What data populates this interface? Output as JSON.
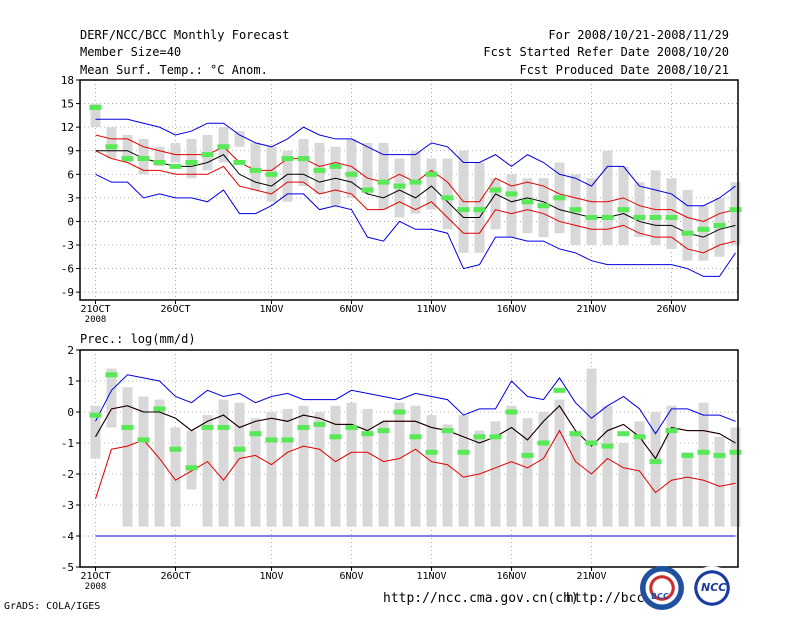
{
  "header": {
    "title": "DERF/NCC/BCC Monthly Forecast",
    "member_size": "Member Size=40",
    "variable": "Mean Surf. Temp.: °C Anom.",
    "period": "For 2008/10/21-2008/11/29",
    "started": "Fcst Started Refer Date 2008/10/20",
    "produced": "Fcst Produced Date 2008/10/21"
  },
  "footer": {
    "grads": "GrADS: COLA/IGES",
    "url1": "http://ncc.cma.gov.cn(ch)",
    "url2": "http://bcc.",
    "logo_left": "BCC",
    "logo_right": "NCC"
  },
  "colors": {
    "box": "#d8d8d8",
    "mean": "#58e858",
    "median": "#000000",
    "inner": "#e00000",
    "outer": "#0000e0",
    "grid": "#999999"
  },
  "chart_data": [
    {
      "type": "ensemble-boxplot",
      "title": "Mean Surf. Temp.: °C Anom.",
      "ylim": [
        -10,
        18
      ],
      "yticks": [
        -9,
        -6,
        -3,
        0,
        3,
        6,
        9,
        12,
        15,
        18
      ],
      "xticks": [
        {
          "day": 0,
          "label": "21OCT",
          "sub": "2008"
        },
        {
          "day": 5,
          "label": "26OCT"
        },
        {
          "day": 11,
          "label": "1NOV"
        },
        {
          "day": 16,
          "label": "6NOV"
        },
        {
          "day": 21,
          "label": "11NOV"
        },
        {
          "day": 26,
          "label": "16NOV"
        },
        {
          "day": 31,
          "label": "21NOV"
        },
        {
          "day": 36,
          "label": "26NOV"
        }
      ],
      "box_low": [
        12,
        8,
        7.5,
        6,
        7,
        7.5,
        5.5,
        6.5,
        7.5,
        9.5,
        4,
        2.5,
        2.5,
        4.5,
        3.5,
        2,
        3,
        3.5,
        1.5,
        0.5,
        1,
        1.5,
        -1,
        -4,
        -4,
        -1,
        -2,
        -1.5,
        -2,
        -1.5,
        -3,
        -3,
        -3,
        -3,
        -2,
        -3,
        -3.5,
        -5,
        -5,
        -4.5,
        -3
      ],
      "box_high": [
        15,
        12,
        11,
        10.5,
        9.5,
        10,
        10.5,
        11,
        12,
        11.5,
        10,
        9.5,
        9,
        10.5,
        10,
        9.5,
        10.5,
        10,
        10,
        8,
        9,
        8,
        8,
        9,
        7.5,
        5.5,
        6,
        5.5,
        5.5,
        7.5,
        6,
        5.5,
        9,
        7,
        5,
        6.5,
        5.5,
        4,
        2,
        3,
        5
      ],
      "mean": [
        14.5,
        9.5,
        8,
        8,
        7.5,
        7,
        7.5,
        8.5,
        9.5,
        7.5,
        6.5,
        6,
        8,
        8,
        6.5,
        7,
        6,
        4,
        5,
        4.5,
        5,
        6,
        3,
        1.5,
        1.5,
        4,
        3.5,
        2.5,
        2,
        3,
        1.5,
        0.5,
        0.5,
        1.5,
        0.5,
        0.5,
        0.5,
        -1.5,
        -1,
        -0.5,
        1.5
      ],
      "median": [
        9,
        9,
        9,
        8,
        7.5,
        7,
        7,
        7.5,
        8.5,
        6,
        5,
        4.5,
        6,
        6,
        5,
        5.5,
        5,
        3.5,
        3,
        4,
        3,
        4.5,
        2.5,
        0.5,
        0.5,
        3.5,
        2.5,
        3,
        2.5,
        1.5,
        1,
        0.5,
        0.5,
        1,
        0,
        -0.5,
        -0.5,
        -1.5,
        -2,
        -1,
        -0.5
      ],
      "inner_high": [
        11,
        10.5,
        10.5,
        9.5,
        9,
        8.5,
        8.5,
        8.5,
        9.5,
        7.5,
        6.5,
        6.5,
        8,
        8,
        7,
        7.5,
        7,
        5.5,
        5,
        6,
        5,
        6.5,
        5,
        2.5,
        2.5,
        5.5,
        4.5,
        5,
        4.5,
        3.5,
        3,
        2.5,
        2.5,
        3,
        2,
        1.5,
        1.5,
        0.5,
        0,
        1,
        1.5
      ],
      "inner_low": [
        9,
        8,
        7.5,
        6.5,
        6.5,
        6,
        6,
        6,
        7,
        4.5,
        4,
        3.5,
        5,
        5,
        3.5,
        4,
        3.5,
        1.5,
        1.5,
        2.5,
        1.5,
        2.5,
        0.5,
        -1.5,
        -1.5,
        1.5,
        1,
        1.5,
        1,
        0,
        -0.5,
        -1,
        -1,
        -0.5,
        -1.5,
        -2,
        -2,
        -3.5,
        -4,
        -3,
        -2.5
      ],
      "outer_high": [
        13,
        13,
        13,
        12.5,
        12,
        11,
        11.5,
        12.5,
        12.5,
        11,
        10,
        9.5,
        10.5,
        12,
        11,
        10.5,
        10.5,
        9.5,
        8.5,
        8.5,
        8.5,
        10,
        9.5,
        7.5,
        7.5,
        8.5,
        7,
        8.5,
        7.5,
        6,
        5.5,
        4.5,
        7,
        7,
        4.5,
        4,
        3.5,
        2,
        2,
        3,
        4.5
      ],
      "outer_low": [
        6,
        5,
        5,
        3,
        3.5,
        3,
        3,
        2.5,
        4,
        1,
        1,
        2,
        3.5,
        3.5,
        1.5,
        2,
        1.5,
        -2,
        -2.5,
        0,
        -1,
        -1,
        -1.5,
        -6,
        -5.5,
        -2,
        -2,
        -2.5,
        -2.5,
        -3.5,
        -4,
        -5,
        -5.5,
        -5.5,
        -5.5,
        -5.5,
        -5.5,
        -6,
        -7,
        -7,
        -4
      ]
    },
    {
      "type": "ensemble-boxplot",
      "title": "Prec.: log(mm/d)",
      "ylim": [
        -5,
        2
      ],
      "yticks": [
        -5,
        -4,
        -3,
        -2,
        -1,
        0,
        1,
        2
      ],
      "xticks": [
        {
          "day": 0,
          "label": "21OCT",
          "sub": "2008"
        },
        {
          "day": 5,
          "label": "26OCT"
        },
        {
          "day": 11,
          "label": "1NOV"
        },
        {
          "day": 16,
          "label": "6NOV"
        },
        {
          "day": 21,
          "label": "11NOV"
        },
        {
          "day": 26,
          "label": "16NOV"
        },
        {
          "day": 31,
          "label": "21NOV"
        }
      ],
      "box_low": [
        -1.5,
        -0.5,
        -3.7,
        -3.7,
        -3.7,
        -3.7,
        -2.5,
        -3.7,
        -3.7,
        -3.7,
        -3.7,
        -3.7,
        -3.7,
        -3.7,
        -3.7,
        -3.7,
        -3.7,
        -3.7,
        -3.7,
        -3.7,
        -3.7,
        -3.7,
        -3.7,
        -3.7,
        -3.7,
        -3.7,
        -3.7,
        -3.7,
        -3.7,
        -3.7,
        -3.7,
        -3.7,
        -3.7,
        -3.7,
        -3.7,
        -3.7,
        -3.7,
        -3.7,
        -3.7,
        -3.7,
        -3.7
      ],
      "box_high": [
        0.2,
        1.4,
        0.8,
        0.5,
        0.4,
        -0.5,
        -0.6,
        -0.1,
        0.4,
        0.3,
        -0.2,
        0,
        0.1,
        0.2,
        0,
        0.2,
        0.3,
        0.1,
        -0.3,
        0.3,
        0.2,
        -0.1,
        -0.4,
        -0.1,
        -0.6,
        -0.3,
        0.2,
        -0.2,
        0,
        0.4,
        -0.6,
        1.4,
        0.2,
        -1,
        -0.3,
        0,
        0.2,
        -1.3,
        0.3,
        -0.8,
        -0.5
      ],
      "mean": [
        -0.1,
        1.2,
        -0.5,
        -0.9,
        0.1,
        -1.2,
        -1.8,
        -0.5,
        -0.5,
        -1.2,
        -0.7,
        -0.9,
        -0.9,
        -0.5,
        -0.4,
        -0.8,
        -0.5,
        -0.7,
        -0.6,
        0,
        -0.8,
        -1.3,
        -0.6,
        -1.3,
        -0.8,
        -0.8,
        0,
        -1.4,
        -1,
        0.7,
        -0.7,
        -1,
        -1.1,
        -0.7,
        -0.8,
        -1.6,
        -0.6,
        -1.4,
        -1.3,
        -1.4,
        -1.3
      ],
      "median": [
        -0.8,
        0.1,
        0.2,
        0,
        0,
        -0.2,
        -0.6,
        -0.3,
        -0.1,
        -0.5,
        -0.3,
        -0.2,
        -0.3,
        -0.1,
        -0.2,
        -0.4,
        -0.4,
        -0.6,
        -0.3,
        -0.3,
        -0.3,
        -0.5,
        -0.6,
        -0.8,
        -1,
        -0.8,
        -0.5,
        -0.9,
        -0.3,
        0.2,
        -0.6,
        -1.1,
        -0.6,
        -0.4,
        -0.8,
        -1.5,
        -0.5,
        -0.6,
        -0.6,
        -0.7,
        -1
      ],
      "inner_high": [
        -0.8,
        0.1,
        0.2,
        0,
        0,
        -0.2,
        -0.6,
        -0.3,
        -0.1,
        -0.5,
        -0.3,
        -0.2,
        -0.3,
        -0.1,
        -0.2,
        -0.4,
        -0.4,
        -0.6,
        -0.3,
        -0.3,
        -0.3,
        -0.5,
        -0.6,
        -0.8,
        -1,
        -0.8,
        -0.5,
        -0.9,
        -0.3,
        0.2,
        -0.6,
        -1.1,
        -0.6,
        -0.4,
        -0.8,
        -1.5,
        -0.5,
        -0.6,
        -0.6,
        -0.7,
        -1
      ],
      "inner_low": [
        -2.8,
        -1.2,
        -1.1,
        -0.9,
        -1.5,
        -2.2,
        -1.9,
        -1.6,
        -2.2,
        -1.5,
        -1.4,
        -1.7,
        -1.3,
        -1.1,
        -1.2,
        -1.6,
        -1.3,
        -1.3,
        -1.6,
        -1.5,
        -1.2,
        -1.6,
        -1.7,
        -2.1,
        -2,
        -1.8,
        -1.6,
        -1.8,
        -1.5,
        -0.6,
        -1.6,
        -2,
        -1.5,
        -1.8,
        -1.9,
        -2.6,
        -2.2,
        -2.1,
        -2.2,
        -2.4,
        -2.3
      ],
      "outer_high": [
        -0.3,
        0.7,
        1.2,
        1.1,
        1,
        0.5,
        0.3,
        0.7,
        0.5,
        0.6,
        0.3,
        0.5,
        0.6,
        0.4,
        0.4,
        0.4,
        0.7,
        0.6,
        0.5,
        0.4,
        0.6,
        0.5,
        0.4,
        -0.1,
        0.1,
        0.1,
        1,
        0.5,
        0.4,
        1.1,
        0.3,
        -0.2,
        0.2,
        0.5,
        0.1,
        -0.7,
        0.1,
        0.1,
        -0.1,
        -0.1,
        -0.3
      ],
      "outer_low": [
        -4,
        -4,
        -4,
        -4,
        -4,
        -4,
        -4,
        -4,
        -4,
        -4,
        -4,
        -4,
        -4,
        -4,
        -4,
        -4,
        -4,
        -4,
        -4,
        -4,
        -4,
        -4,
        -4,
        -4,
        -4,
        -4,
        -4,
        -4,
        -4,
        -4,
        -4,
        -4,
        -4,
        -4,
        -4,
        -4,
        -4,
        -4,
        -4,
        -4,
        -4
      ]
    }
  ]
}
